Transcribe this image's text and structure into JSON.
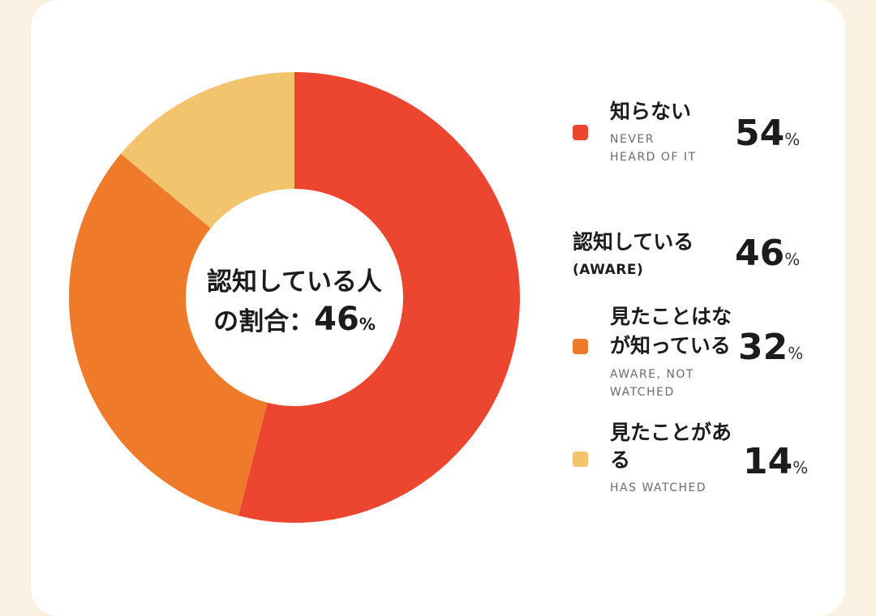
{
  "chart_data": {
    "type": "pie",
    "center": {
      "line1": "認知している人",
      "line2_prefix": "の割合：",
      "value": "46",
      "unit": "%"
    },
    "slices": [
      {
        "label": "知らない",
        "value": 54,
        "color": "#ec4530"
      },
      {
        "label": "見たことはないが知っている",
        "value": 32,
        "color": "#ee7a2a"
      },
      {
        "label": "見たことがある",
        "value": 14,
        "color": "#f2c46e"
      }
    ],
    "legend": [
      {
        "jp": "知らない",
        "en1": "NEVER",
        "en2": "HEARD OF IT",
        "value": "54",
        "unit": "%",
        "color": "#ec4530",
        "has_swatch": true
      },
      {
        "jp": "認知している",
        "en1": "(AWARE)",
        "en2": "",
        "value": "46",
        "unit": "%",
        "color": "",
        "has_swatch": false
      },
      {
        "jp1": "見たことはな",
        "jp2": "が知っている",
        "en1": "AWARE, NOT",
        "en2": "WATCHED",
        "value": "32",
        "unit": "%",
        "color": "#ee7a2a",
        "has_swatch": true
      },
      {
        "jp1": "見たことがあ",
        "jp2": "る",
        "en1": "HAS WATCHED",
        "value": "14",
        "unit": "%",
        "color": "#f2c46e",
        "has_swatch": true
      }
    ]
  }
}
